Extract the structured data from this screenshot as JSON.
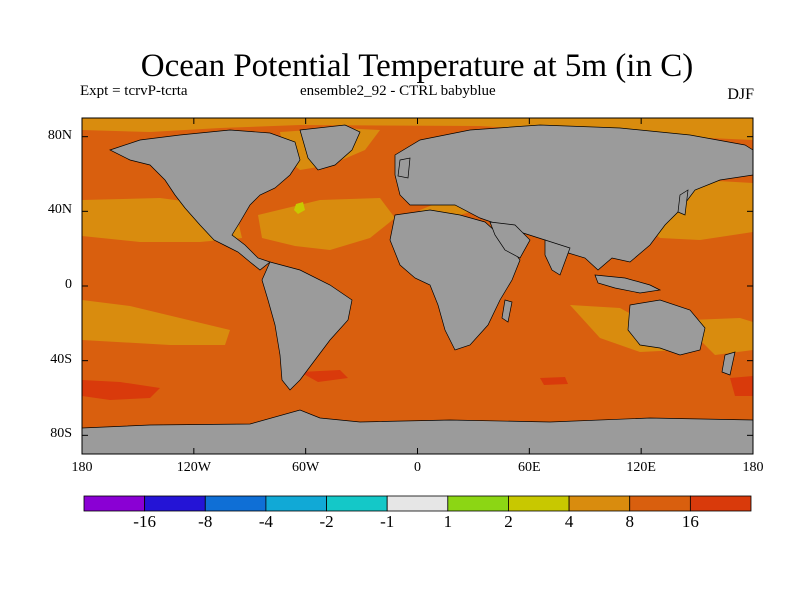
{
  "header": {
    "title": "Ocean Potential Temperature at 5m (in C)",
    "expt": "Expt = tcrvP-tcrta",
    "ensemble": "ensemble2_92 - CTRL babyblue",
    "season": "DJF"
  },
  "colors": {
    "land": "#9b9b9b",
    "ocean_dominant": "#d95f0e",
    "ocean_warm_anomaly": "#d98c0e",
    "ocean_hot_anomaly": "#d93a0b",
    "ocean_yellow": "#c8c800",
    "coastline": "#000000"
  },
  "chart_data": {
    "type": "heatmap",
    "projection": "cylindrical equidistant",
    "longitude_range": [
      -180,
      180
    ],
    "latitude_range": [
      -90,
      90
    ],
    "x_tick_labels": [
      "180",
      "120W",
      "60W",
      "0",
      "60E",
      "120E",
      "180"
    ],
    "x_tick_values": [
      -180,
      -120,
      -60,
      0,
      60,
      120,
      180
    ],
    "y_tick_labels": [
      "80N",
      "40N",
      "0",
      "40S",
      "80S"
    ],
    "y_tick_values": [
      80,
      40,
      0,
      -40,
      -80
    ],
    "colorbar": {
      "bounds": [
        -16,
        -8,
        -4,
        -2,
        -1,
        1,
        2,
        4,
        8,
        16
      ],
      "labels": [
        "-16",
        "-8",
        "-4",
        "-2",
        "-1",
        "1",
        "2",
        "4",
        "8",
        "16"
      ],
      "colors": [
        "#8a00d4",
        "#2414d6",
        "#0f6fd6",
        "#11a9d6",
        "#14c8c8",
        "#e6e6e6",
        "#8cd614",
        "#c8c800",
        "#d98c0e",
        "#d95f0e",
        "#d93a0b"
      ]
    },
    "field_description": "Nearly all ocean values fall in the 8 to 16 bin; lighter 4 to 8 patches in northern high latitudes, subtropical North Atlantic and northwest Pacific; small >16 patches in the Southern Ocean; a small 2 to 4 spot off the US east coast."
  }
}
